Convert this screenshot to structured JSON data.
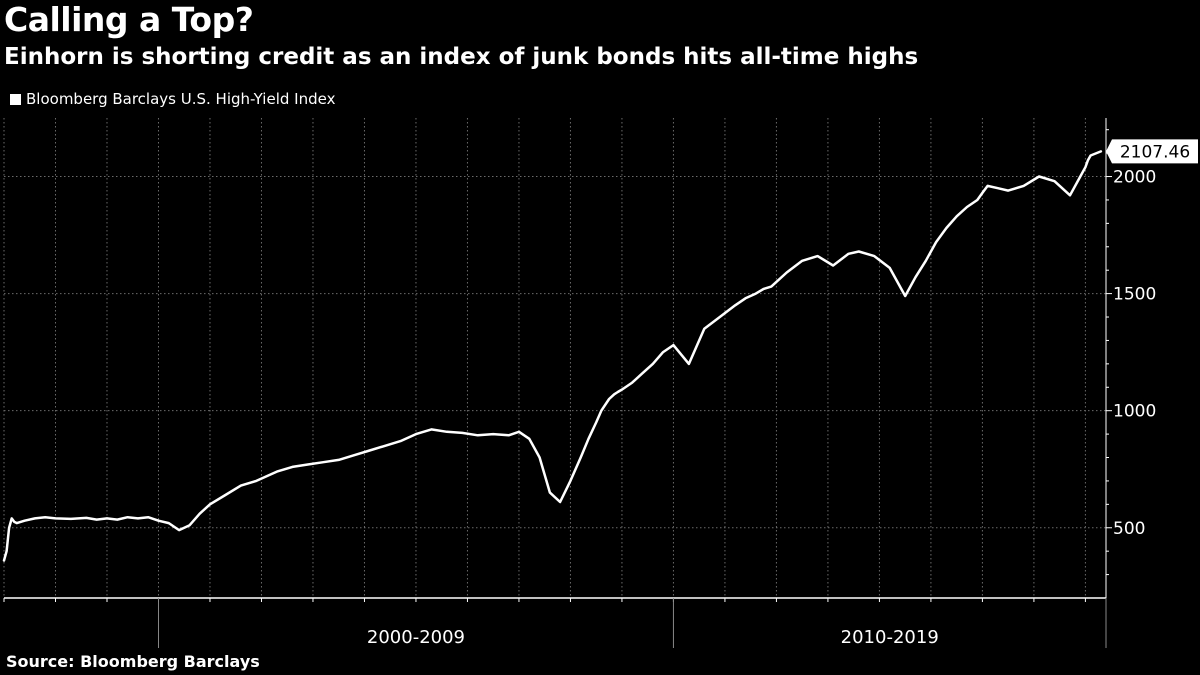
{
  "header": {
    "title": "Calling a Top?",
    "subtitle": "Einhorn is shorting credit as an index of junk bonds hits all-time highs"
  },
  "footer": {
    "source": "Source: Bloomberg Barclays"
  },
  "colors": {
    "background": "#000000",
    "series": "#ffffff",
    "grid": "#6b6b6b"
  },
  "chart_data": {
    "type": "line",
    "title": "Calling a Top?",
    "subtitle": "Einhorn is shorting credit as an index of junk bonds hits all-time highs",
    "xlabel": "",
    "ylabel": "",
    "xlim": [
      1997.0,
      2018.4
    ],
    "ylim": [
      200,
      2250
    ],
    "y_ticks": [
      500,
      1000,
      1500,
      2000
    ],
    "x_period_labels": [
      {
        "label": "2000-2009",
        "start": 2000,
        "end": 2010
      },
      {
        "label": "2010-2019",
        "start": 2010,
        "end": 2020
      }
    ],
    "grid": true,
    "legend_position": "top-left",
    "last_value_label": "2107.46",
    "series": [
      {
        "name": "Bloomberg Barclays U.S. High-Yield Index",
        "color": "#ffffff",
        "x": [
          1997.0,
          1997.05,
          1997.1,
          1997.15,
          1997.2,
          1997.25,
          1997.4,
          1997.6,
          1997.8,
          1998.0,
          1998.3,
          1998.6,
          1998.8,
          1999.0,
          1999.2,
          1999.4,
          1999.6,
          1999.8,
          2000.0,
          2000.2,
          2000.4,
          2000.6,
          2000.8,
          2001.0,
          2001.3,
          2001.6,
          2001.9,
          2002.1,
          2002.3,
          2002.6,
          2002.9,
          2003.2,
          2003.5,
          2003.8,
          2004.1,
          2004.4,
          2004.7,
          2005.0,
          2005.3,
          2005.6,
          2005.9,
          2006.2,
          2006.5,
          2006.8,
          2007.0,
          2007.2,
          2007.4,
          2007.6,
          2007.8,
          2008.0,
          2008.2,
          2008.35,
          2008.5,
          2008.6,
          2008.75,
          2008.85,
          2008.92,
          2009.0,
          2009.2,
          2009.4,
          2009.6,
          2009.8,
          2010.0,
          2010.3,
          2010.6,
          2010.9,
          2011.2,
          2011.4,
          2011.6,
          2011.75,
          2011.9,
          2012.2,
          2012.5,
          2012.8,
          2013.1,
          2013.4,
          2013.6,
          2013.9,
          2014.2,
          2014.5,
          2014.7,
          2014.9,
          2015.1,
          2015.3,
          2015.5,
          2015.7,
          2015.9,
          2016.0,
          2016.1,
          2016.3,
          2016.5,
          2016.8,
          2017.1,
          2017.4,
          2017.7,
          2017.9,
          2018.0,
          2018.05,
          2018.1,
          2018.3
        ],
        "values": [
          360,
          400,
          500,
          540,
          525,
          520,
          530,
          540,
          545,
          540,
          538,
          542,
          535,
          540,
          535,
          545,
          540,
          545,
          530,
          520,
          490,
          510,
          560,
          600,
          640,
          680,
          700,
          720,
          740,
          760,
          770,
          780,
          790,
          810,
          830,
          850,
          870,
          900,
          920,
          910,
          905,
          895,
          900,
          895,
          910,
          880,
          800,
          650,
          610,
          700,
          800,
          880,
          950,
          1000,
          1050,
          1070,
          1080,
          1090,
          1120,
          1160,
          1200,
          1250,
          1280,
          1200,
          1350,
          1400,
          1450,
          1480,
          1500,
          1520,
          1530,
          1590,
          1640,
          1660,
          1620,
          1670,
          1680,
          1660,
          1610,
          1490,
          1570,
          1640,
          1720,
          1780,
          1830,
          1870,
          1900,
          1930,
          1960,
          1950,
          1940,
          1960,
          2000,
          1980,
          1920,
          2000,
          2040,
          2070,
          2090,
          2107.46
        ]
      }
    ]
  }
}
